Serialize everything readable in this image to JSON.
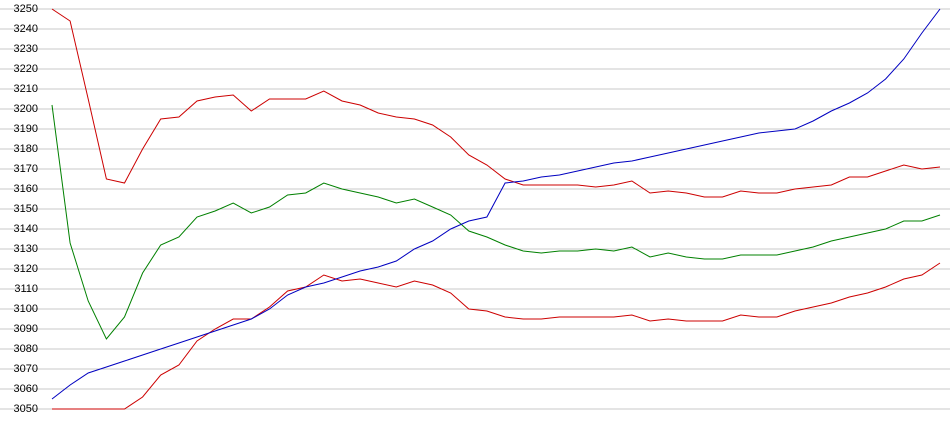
{
  "chart_data": {
    "type": "line",
    "categories": [
      null,
      null,
      null,
      null,
      null,
      null,
      null,
      null,
      null,
      null,
      null,
      null,
      null,
      null,
      null,
      null,
      null,
      null,
      null,
      null,
      null,
      null,
      null,
      null,
      null,
      null,
      null,
      null,
      null,
      null,
      null,
      null,
      null,
      null,
      null,
      null,
      null,
      null,
      null,
      null,
      null,
      null,
      null,
      null,
      null,
      null,
      null,
      null,
      null,
      null
    ],
    "series": [
      {
        "color": "#cc0000",
        "values": [
          3250,
          3244,
          3205,
          3165,
          3163,
          3180,
          3195,
          3196,
          3204,
          3206,
          3207,
          3199,
          3205,
          3205,
          3205,
          3209,
          3204,
          3202,
          3198,
          3196,
          3195,
          3192,
          3186,
          3177,
          3172,
          3165,
          3162,
          3162,
          3162,
          3162,
          3161,
          3162,
          3164,
          3158,
          3159,
          3158,
          3156,
          3156,
          3159,
          3158,
          3158,
          3160,
          3161,
          3162,
          3166,
          3166,
          3169,
          3172,
          3170,
          3171
        ]
      },
      {
        "color": "#008000",
        "values": [
          3202,
          3133,
          3104,
          3085,
          3096,
          3118,
          3132,
          3136,
          3146,
          3149,
          3153,
          3148,
          3151,
          3157,
          3158,
          3163,
          3160,
          3158,
          3156,
          3153,
          3155,
          3151,
          3147,
          3139,
          3136,
          3132,
          3129,
          3128,
          3129,
          3129,
          3130,
          3129,
          3131,
          3126,
          3128,
          3126,
          3125,
          3125,
          3127,
          3127,
          3127,
          3129,
          3131,
          3134,
          3136,
          3138,
          3140,
          3144,
          3144,
          3147
        ]
      },
      {
        "color": "#cc0000",
        "values": [
          3050,
          3050,
          3050,
          3050,
          3050,
          3056,
          3067,
          3072,
          3084,
          3090,
          3095,
          3095,
          3101,
          3109,
          3111,
          3117,
          3114,
          3115,
          3113,
          3111,
          3114,
          3112,
          3108,
          3100,
          3099,
          3096,
          3095,
          3095,
          3096,
          3096,
          3096,
          3096,
          3097,
          3094,
          3095,
          3094,
          3094,
          3094,
          3097,
          3096,
          3096,
          3099,
          3101,
          3103,
          3106,
          3108,
          3111,
          3115,
          3117,
          3123
        ]
      },
      {
        "color": "#0000c0",
        "values": [
          3055,
          3062,
          3068,
          3071,
          3074,
          3077,
          3080,
          3083,
          3086,
          3089,
          3092,
          3095,
          3100,
          3107,
          3111,
          3113,
          3116,
          3119,
          3121,
          3124,
          3130,
          3134,
          3140,
          3144,
          3146,
          3163,
          3164,
          3166,
          3167,
          3169,
          3171,
          3173,
          3174,
          3176,
          3178,
          3180,
          3182,
          3184,
          3186,
          3188,
          3189,
          3190,
          3194,
          3199,
          3203,
          3208,
          3215,
          3225,
          3238,
          3250
        ]
      }
    ],
    "ylim": [
      3050,
      3250
    ],
    "yticks": [
      3050,
      3060,
      3070,
      3080,
      3090,
      3100,
      3110,
      3120,
      3130,
      3140,
      3150,
      3160,
      3170,
      3180,
      3190,
      3200,
      3210,
      3220,
      3230,
      3240,
      3250
    ],
    "grid": true
  }
}
